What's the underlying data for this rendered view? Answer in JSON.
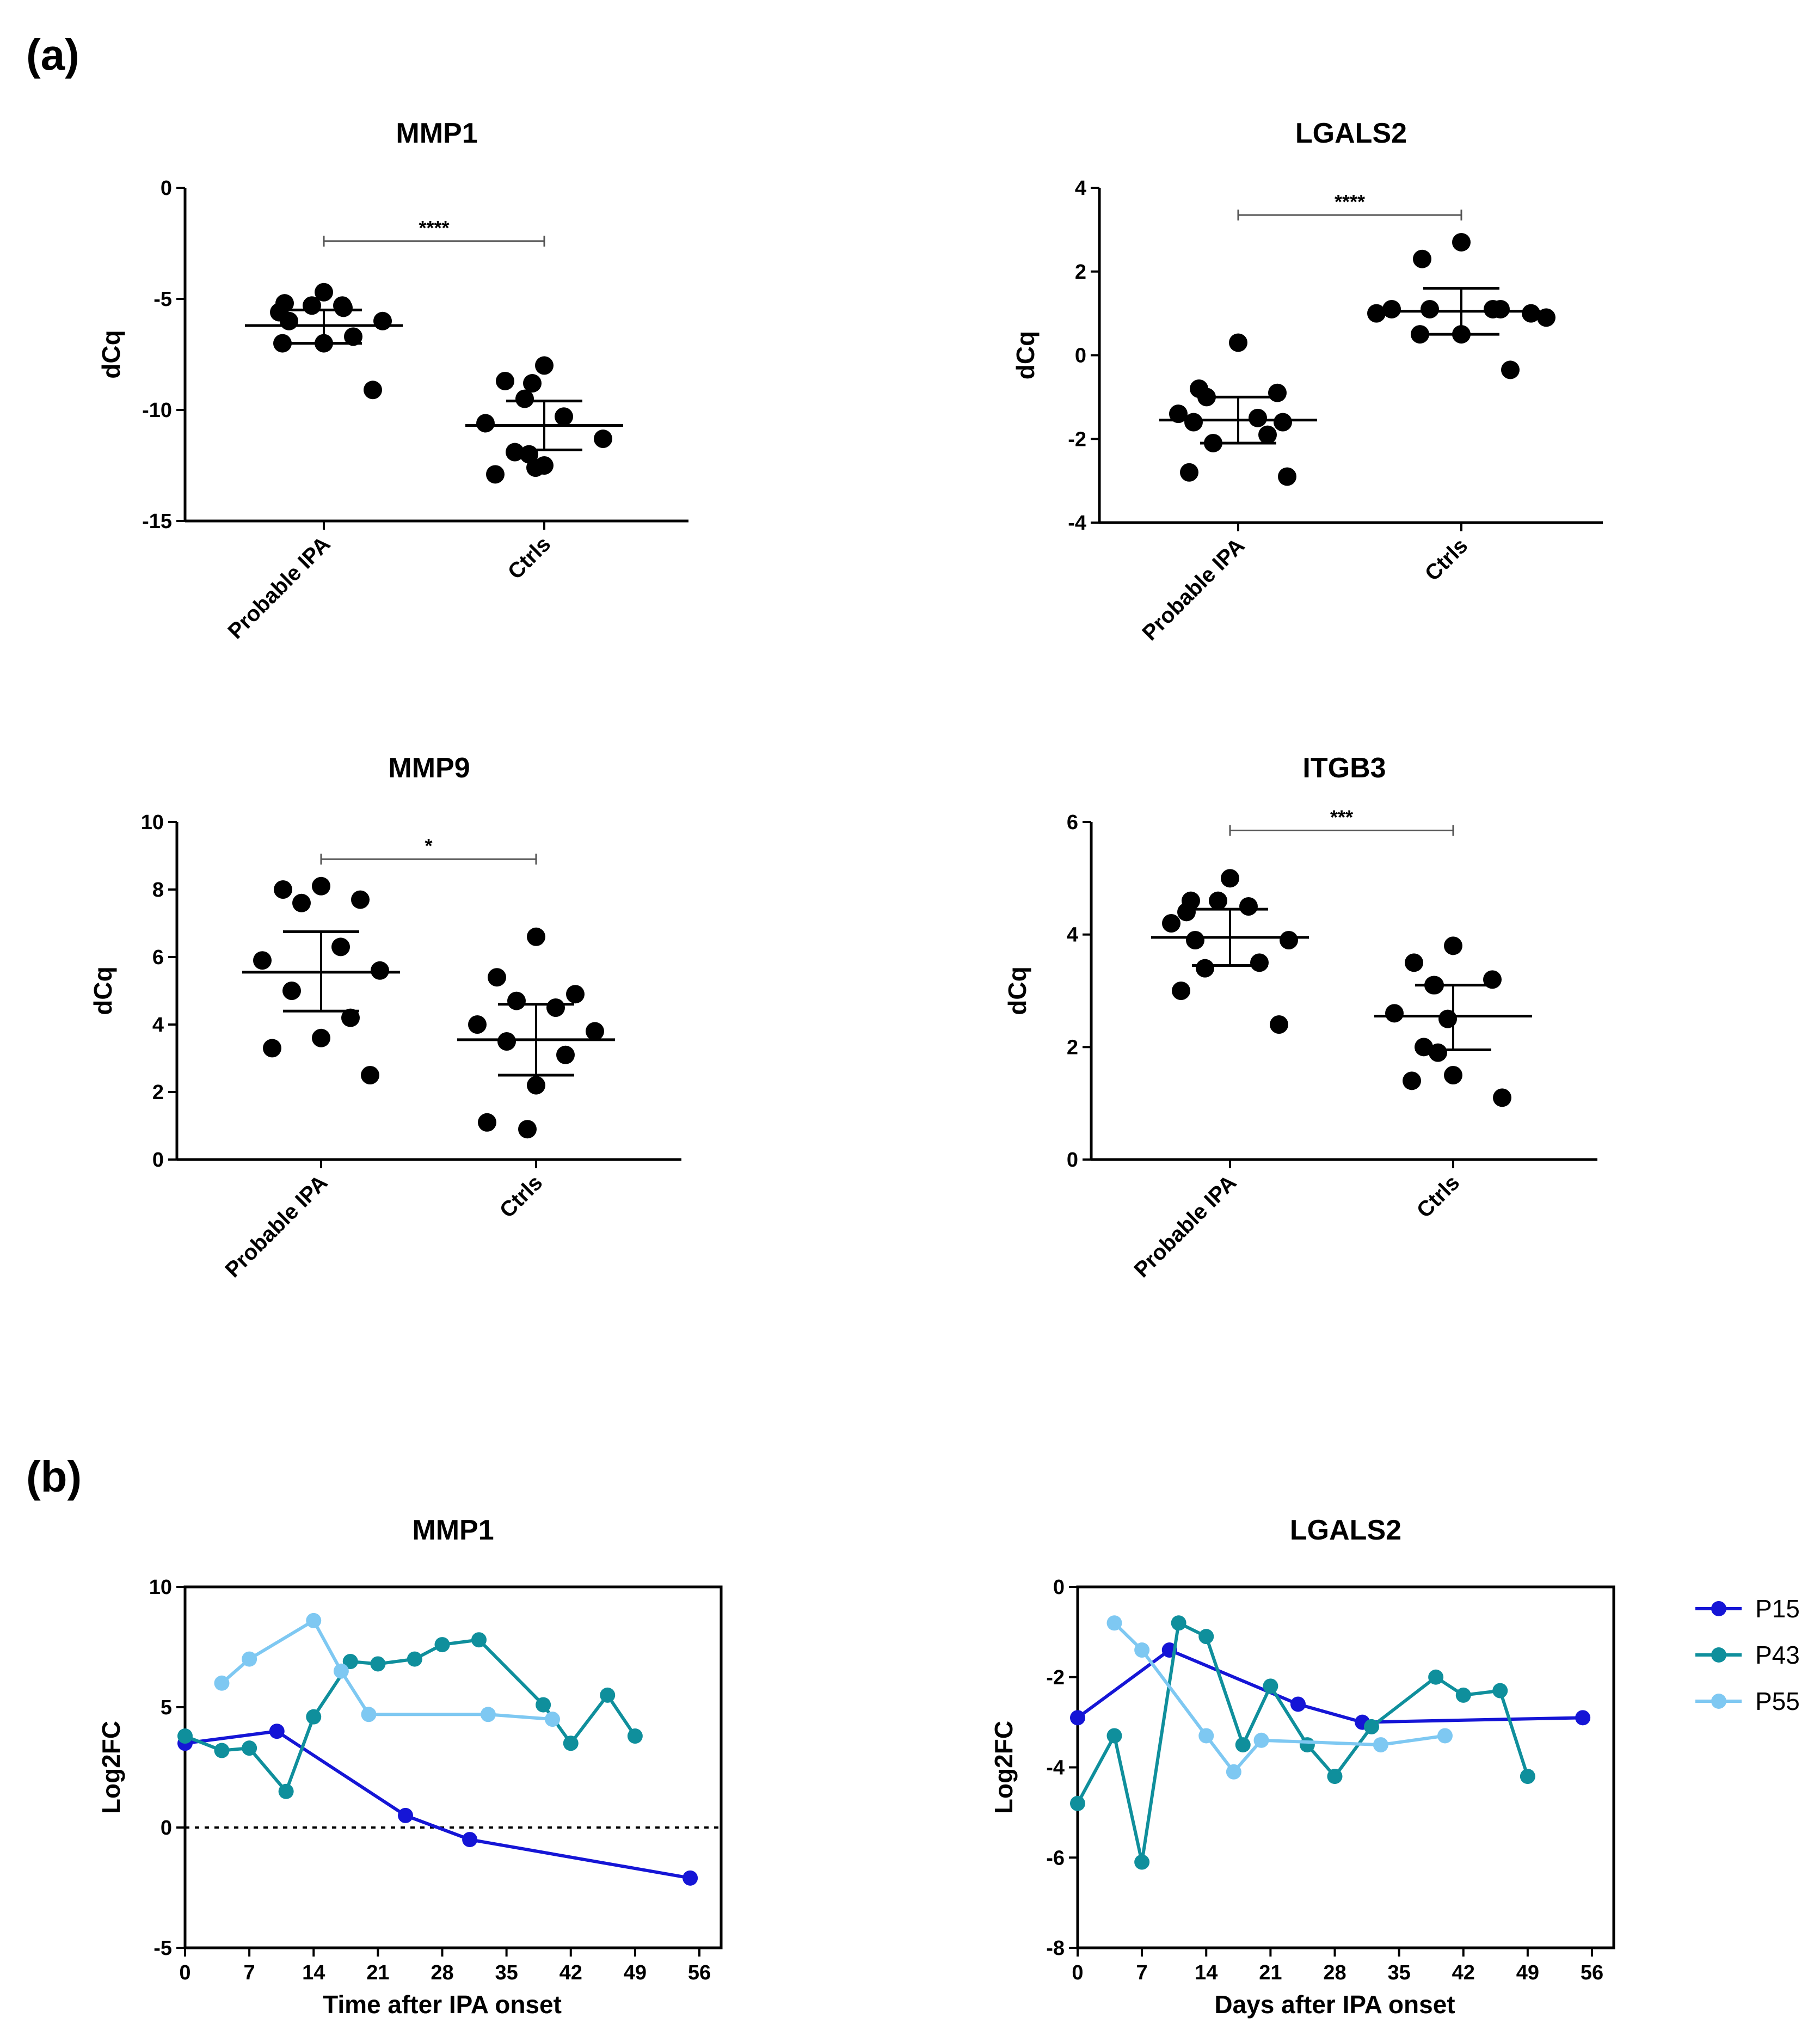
{
  "panel_labels": {
    "a": "(a)",
    "b": "(b)"
  },
  "chart_data": [
    {
      "id": "a-mmp1",
      "type": "scatter",
      "title": "MMP1",
      "xlabel": "",
      "ylabel": "dCq",
      "ylim": [
        -15,
        0
      ],
      "yticks": [
        0,
        -5,
        -10,
        -15
      ],
      "ytick_labels": [
        "0",
        "-5",
        "-10",
        "-15"
      ],
      "categories": [
        "Probable IPA",
        "Ctrls"
      ],
      "groups": [
        {
          "name": "Probable IPA",
          "values": [
            -4.7,
            -5.2,
            -5.3,
            -5.3,
            -5.4,
            -5.6,
            -6.0,
            -6.0,
            -6.7,
            -7.0,
            -7.0,
            -9.1
          ],
          "mean": -6.2,
          "ci_low": -7.0,
          "ci_high": -5.5
        },
        {
          "name": "Ctrls",
          "values": [
            -8.0,
            -8.7,
            -8.8,
            -9.5,
            -10.3,
            -10.6,
            -11.3,
            -11.9,
            -12.0,
            -12.5,
            -12.9,
            -12.6
          ],
          "mean": -10.7,
          "ci_low": -11.8,
          "ci_high": -9.6
        }
      ],
      "significance": {
        "label": "****",
        "y": -2.4
      }
    },
    {
      "id": "a-lgals2",
      "type": "scatter",
      "title": "LGALS2",
      "xlabel": "",
      "ylabel": "dCq",
      "ylim": [
        -4,
        4
      ],
      "yticks": [
        4,
        2,
        0,
        -2,
        -4
      ],
      "ytick_labels": [
        "4",
        "2",
        "0",
        "-2",
        "-4"
      ],
      "categories": [
        "Probable IPA",
        "Ctrls"
      ],
      "groups": [
        {
          "name": "Probable IPA",
          "values": [
            0.3,
            -0.8,
            -0.9,
            -1.0,
            -1.5,
            -1.6,
            -1.6,
            -1.4,
            -1.9,
            -2.1,
            -2.8,
            -2.9
          ],
          "mean": -1.55,
          "ci_low": -2.1,
          "ci_high": -1.0
        },
        {
          "name": "Ctrls",
          "values": [
            2.7,
            2.3,
            1.1,
            1.1,
            1.1,
            1.1,
            1.0,
            1.0,
            0.9,
            0.5,
            0.5,
            -0.35
          ],
          "mean": 1.05,
          "ci_low": 0.5,
          "ci_high": 1.6
        }
      ],
      "significance": {
        "label": "****",
        "y": 3.35
      }
    },
    {
      "id": "a-mmp9",
      "type": "scatter",
      "title": "MMP9",
      "xlabel": "",
      "ylabel": "dCq",
      "ylim": [
        0,
        10
      ],
      "yticks": [
        10,
        8,
        6,
        4,
        2,
        0
      ],
      "ytick_labels": [
        "10",
        "8",
        "6",
        "4",
        "2",
        "0"
      ],
      "categories": [
        "Probable IPA",
        "Ctrls"
      ],
      "groups": [
        {
          "name": "Probable IPA",
          "values": [
            8.1,
            8.0,
            7.7,
            7.6,
            6.3,
            5.9,
            5.6,
            5.0,
            4.2,
            3.6,
            3.3,
            2.5
          ],
          "mean": 5.55,
          "ci_low": 4.4,
          "ci_high": 6.75
        },
        {
          "name": "Ctrls",
          "values": [
            6.6,
            5.4,
            4.9,
            4.7,
            4.5,
            4.0,
            3.8,
            3.5,
            3.1,
            2.2,
            1.1,
            0.9
          ],
          "mean": 3.55,
          "ci_low": 2.5,
          "ci_high": 4.6
        }
      ],
      "significance": {
        "label": "*",
        "y": 8.9
      }
    },
    {
      "id": "a-itgb3",
      "type": "scatter",
      "title": "ITGB3",
      "xlabel": "",
      "ylabel": "dCq",
      "ylim": [
        0,
        6
      ],
      "yticks": [
        6,
        4,
        2,
        0
      ],
      "ytick_labels": [
        "6",
        "4",
        "2",
        "0"
      ],
      "categories": [
        "Probable IPA",
        "Ctrls"
      ],
      "groups": [
        {
          "name": "Probable IPA",
          "values": [
            5.0,
            4.6,
            4.6,
            4.5,
            4.4,
            4.2,
            3.9,
            3.9,
            3.5,
            3.4,
            3.0,
            2.4
          ],
          "mean": 3.95,
          "ci_low": 3.45,
          "ci_high": 4.45
        },
        {
          "name": "Ctrls",
          "values": [
            3.8,
            3.5,
            3.2,
            3.1,
            3.1,
            2.6,
            2.5,
            2.0,
            1.9,
            1.5,
            1.4,
            1.1
          ],
          "mean": 2.55,
          "ci_low": 1.95,
          "ci_high": 3.1
        }
      ],
      "significance": {
        "label": "***",
        "y": 5.85
      }
    },
    {
      "id": "b-mmp1",
      "type": "line",
      "title": "MMP1",
      "xlabel": "Time after IPA onset",
      "ylabel": "Log2FC",
      "xlim": [
        0,
        56
      ],
      "ylim": [
        -5,
        10
      ],
      "xticks": [
        0,
        7,
        14,
        21,
        28,
        35,
        42,
        49,
        56
      ],
      "xtick_labels": [
        "0",
        "7",
        "14",
        "21",
        "28",
        "35",
        "42",
        "49",
        "56"
      ],
      "yticks": [
        10,
        5,
        0,
        -5
      ],
      "ytick_labels": [
        "10",
        "5",
        "0",
        "-5"
      ],
      "zero_line": true,
      "series": [
        {
          "name": "P15",
          "color": "#1515d6",
          "x": [
            0,
            10,
            24,
            31,
            55
          ],
          "y": [
            3.5,
            4.0,
            0.5,
            -0.5,
            -2.1
          ]
        },
        {
          "name": "P43",
          "color": "#0f8f9c",
          "x": [
            0,
            4,
            7,
            11,
            14,
            18,
            21,
            25,
            28,
            32,
            39,
            42,
            46,
            49
          ],
          "y": [
            3.8,
            3.2,
            3.3,
            1.5,
            4.6,
            6.9,
            6.8,
            7.0,
            7.6,
            7.8,
            5.1,
            3.5,
            5.5,
            3.8
          ]
        },
        {
          "name": "P55",
          "color": "#7ec8f2",
          "x": [
            4,
            7,
            14,
            17,
            20,
            33,
            40
          ],
          "y": [
            6.0,
            7.0,
            8.6,
            6.5,
            4.7,
            4.7,
            4.5
          ]
        }
      ]
    },
    {
      "id": "b-lgals2",
      "type": "line",
      "title": "LGALS2",
      "xlabel": "Days after IPA onset",
      "ylabel": "Log2FC",
      "xlim": [
        0,
        56
      ],
      "ylim": [
        -8,
        0
      ],
      "xticks": [
        0,
        7,
        14,
        21,
        28,
        35,
        42,
        49,
        56
      ],
      "xtick_labels": [
        "0",
        "7",
        "14",
        "21",
        "28",
        "35",
        "42",
        "49",
        "56"
      ],
      "yticks": [
        0,
        -2,
        -4,
        -6,
        -8
      ],
      "ytick_labels": [
        "0",
        "-2",
        "-4",
        "-6",
        "-8"
      ],
      "zero_line": false,
      "series": [
        {
          "name": "P15",
          "color": "#1515d6",
          "x": [
            0,
            10,
            24,
            31,
            55
          ],
          "y": [
            -2.9,
            -1.4,
            -2.6,
            -3.0,
            -2.9
          ]
        },
        {
          "name": "P43",
          "color": "#0f8f9c",
          "x": [
            0,
            4,
            7,
            11,
            14,
            18,
            21,
            25,
            28,
            32,
            39,
            42,
            46,
            49
          ],
          "y": [
            -4.8,
            -3.3,
            -6.1,
            -0.8,
            -1.1,
            -3.5,
            -2.2,
            -3.5,
            -4.2,
            -3.1,
            -2.0,
            -2.4,
            -2.3,
            -4.2
          ]
        },
        {
          "name": "P55",
          "color": "#7ec8f2",
          "x": [
            4,
            7,
            14,
            17,
            20,
            33,
            40
          ],
          "y": [
            -0.8,
            -1.4,
            -3.3,
            -4.1,
            -3.4,
            -3.5,
            -3.3
          ]
        }
      ]
    }
  ],
  "legend": {
    "position": "right",
    "entries": [
      {
        "label": "P15",
        "color": "#1515d6"
      },
      {
        "label": "P43",
        "color": "#0f8f9c"
      },
      {
        "label": "P55",
        "color": "#7ec8f2"
      }
    ]
  }
}
